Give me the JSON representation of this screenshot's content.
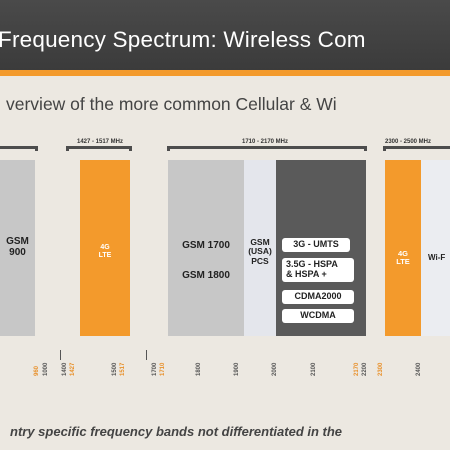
{
  "title": "Frequency Spectrum: Wireless Com",
  "subtitle": "verview of the more common Cellular & Wi",
  "ranges": {
    "r1": "1427 - 1517 MHz",
    "r2": "1710 - 2170 MHz",
    "r3": "2300 - 2500 MHz"
  },
  "bands": {
    "gsm900": "GSM\n900",
    "lte_a": "4G\nLTE",
    "gsm1700": "GSM 1700",
    "gsm1800": "GSM 1800",
    "gsm_usa_pcs": "GSM\n(USA)\nPCS",
    "umts": "3G - UMTS",
    "hspa": "3.5G - HSPA\n& HSPA +",
    "cdma2000": "CDMA2000",
    "wcdma": "WCDMA",
    "lte_b": "4G\nLTE",
    "wifi": "Wi-F"
  },
  "ticks": [
    {
      "label": "960",
      "color": "orange"
    },
    {
      "label": "1000",
      "color": "dark"
    },
    {
      "label": "1400",
      "color": "dark"
    },
    {
      "label": "1427",
      "color": "orange"
    },
    {
      "label": "1500",
      "color": "dark"
    },
    {
      "label": "1517",
      "color": "orange"
    },
    {
      "label": "1700",
      "color": "dark"
    },
    {
      "label": "1710",
      "color": "orange"
    },
    {
      "label": "1800",
      "color": "dark"
    },
    {
      "label": "1900",
      "color": "dark"
    },
    {
      "label": "2000",
      "color": "dark"
    },
    {
      "label": "2100",
      "color": "dark"
    },
    {
      "label": "2170",
      "color": "orange"
    },
    {
      "label": "2200",
      "color": "dark"
    },
    {
      "label": "2300",
      "color": "orange"
    },
    {
      "label": "2400",
      "color": "dark"
    }
  ],
  "footer": "ntry specific frequency bands not differentiated in the",
  "colors": {
    "orange": "#f39a2c",
    "title_bg": "#3b3b3b",
    "background": "#ece8e1"
  }
}
